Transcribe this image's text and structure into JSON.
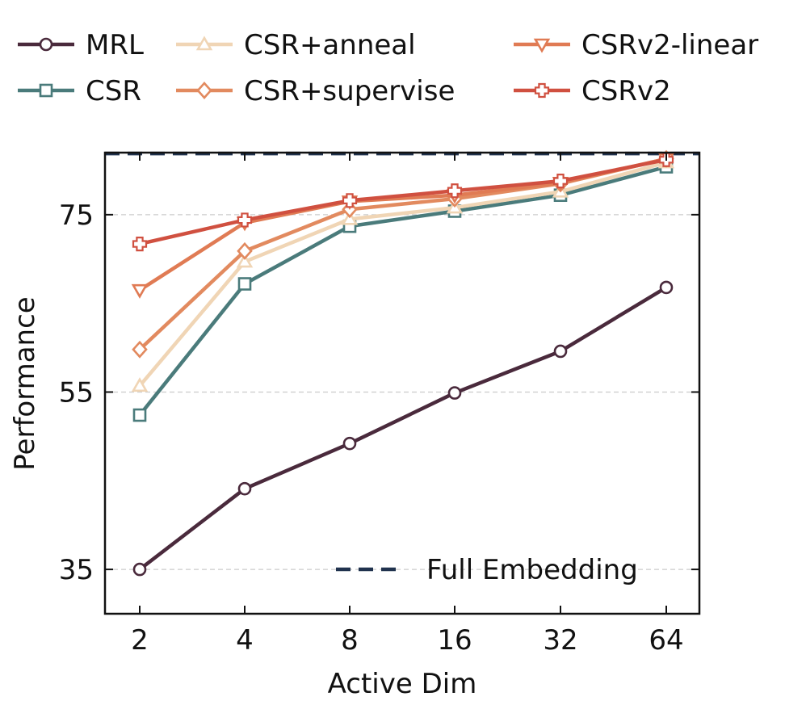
{
  "chart_data": {
    "type": "line",
    "title": "",
    "xlabel": "Active Dim",
    "ylabel": "Performance",
    "categories": [
      "2",
      "4",
      "8",
      "16",
      "32",
      "64"
    ],
    "ylim": [
      30,
      82
    ],
    "yticks": [
      35,
      55,
      75
    ],
    "grid": "horizontal-dashed",
    "series": [
      {
        "name": "MRL",
        "color": "#4a2a3c",
        "marker": "circle",
        "width": 4.5,
        "values": [
          35.0,
          44.1,
          49.2,
          54.9,
          59.6,
          66.8
        ]
      },
      {
        "name": "CSR",
        "color": "#4a7b7b",
        "marker": "square",
        "width": 4.5,
        "values": [
          52.4,
          67.2,
          73.7,
          75.4,
          77.2,
          80.4
        ]
      },
      {
        "name": "CSR+anneal",
        "color": "#f0d5b5",
        "marker": "triangle-up",
        "width": 4.5,
        "values": [
          55.7,
          69.7,
          74.5,
          75.8,
          77.6,
          80.9
        ]
      },
      {
        "name": "CSR+supervise",
        "color": "#e28a5f",
        "marker": "diamond",
        "width": 4.5,
        "values": [
          59.8,
          70.9,
          75.6,
          76.8,
          78.5,
          81.3
        ]
      },
      {
        "name": "CSRv2-linear",
        "color": "#e07b54",
        "marker": "triangle-down",
        "width": 4.5,
        "values": [
          66.5,
          74.1,
          76.5,
          77.2,
          78.6,
          81.3
        ]
      },
      {
        "name": "CSRv2",
        "color": "#d05040",
        "marker": "plus",
        "width": 4.5,
        "values": [
          71.7,
          74.4,
          76.6,
          77.7,
          78.8,
          81.2
        ]
      }
    ],
    "reference_line": {
      "name": "Full Embedding",
      "value": 81.9,
      "color": "#20324e",
      "style": "dashed"
    },
    "legend": {
      "position": "top",
      "columns": 3
    }
  }
}
